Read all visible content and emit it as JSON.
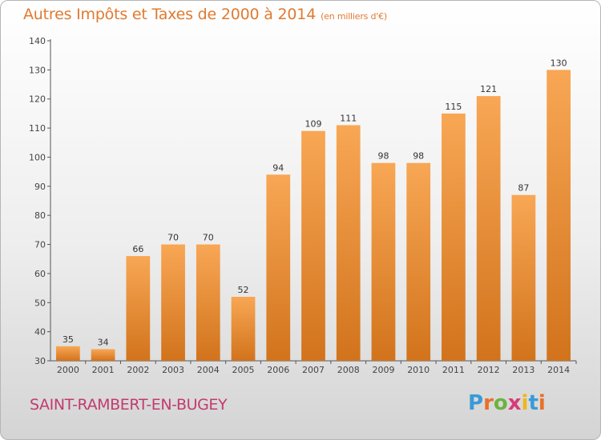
{
  "title": "Autres Impôts et Taxes de 2000 à 2014",
  "title_unit": "(en milliers d'€)",
  "city": "SAINT-RAMBERT-EN-BUGEY",
  "logo": {
    "text": "Proxiti",
    "colors": [
      "#3a9ad9",
      "#e8702a",
      "#6cb33e",
      "#d93a7a",
      "#f2b619",
      "#3a9ad9",
      "#e8702a"
    ]
  },
  "colors": {
    "title": "#e07a30",
    "city": "#c23b6e",
    "bar_top": "#f8a755",
    "bar_bottom": "#d2731c"
  },
  "chart_data": {
    "type": "bar",
    "title": "Autres Impôts et Taxes de 2000 à 2014",
    "categories": [
      "2000",
      "2001",
      "2002",
      "2003",
      "2004",
      "2005",
      "2006",
      "2007",
      "2008",
      "2009",
      "2010",
      "2011",
      "2012",
      "2013",
      "2014"
    ],
    "values": [
      35,
      34,
      66,
      70,
      70,
      52,
      94,
      109,
      111,
      98,
      98,
      115,
      121,
      87,
      130
    ],
    "ylim": [
      30,
      140
    ],
    "yticks": [
      30,
      40,
      50,
      60,
      70,
      80,
      90,
      100,
      110,
      120,
      130,
      140
    ],
    "xlabel": "",
    "ylabel": "",
    "grid": false
  }
}
